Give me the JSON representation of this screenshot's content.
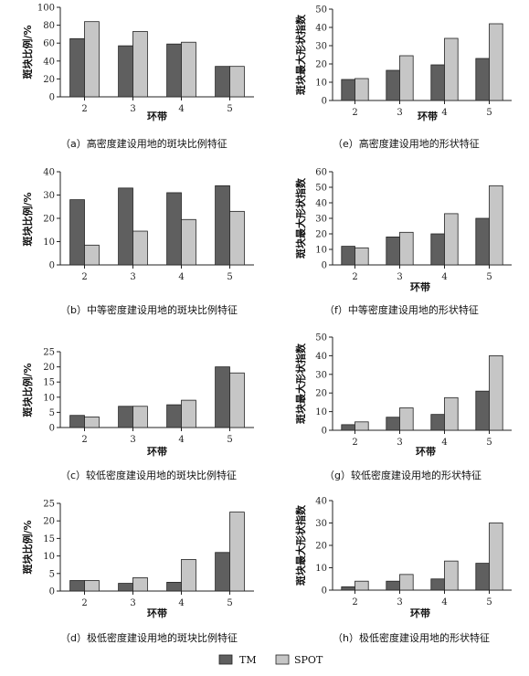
{
  "colors": {
    "tm": "#5f5f5f",
    "spot": "#c6c6c6",
    "outline": "#222222"
  },
  "legend": {
    "tm": "TM",
    "spot": "SPOT"
  },
  "chart_data": [
    {
      "type": "bar",
      "categories": [
        "2",
        "3",
        "4",
        "5"
      ],
      "series": [
        {
          "name": "TM",
          "values": [
            65,
            57,
            59,
            34
          ]
        },
        {
          "name": "SPOT",
          "values": [
            84,
            73,
            61,
            34
          ]
        }
      ],
      "xlabel": "环带",
      "ylabel": "斑块比例/%",
      "ylim": [
        0,
        100
      ],
      "yticks": [
        0,
        20,
        40,
        60,
        80,
        100
      ],
      "caption": "（a）高密度建设用地的斑块比例特征"
    },
    {
      "type": "bar",
      "categories": [
        "2",
        "3",
        "4",
        "5"
      ],
      "series": [
        {
          "name": "TM",
          "values": [
            28,
            33,
            31,
            34
          ]
        },
        {
          "name": "SPOT",
          "values": [
            8.5,
            14.5,
            19.5,
            23
          ]
        }
      ],
      "xlabel": "",
      "ylabel": "斑块比例/%",
      "ylim": [
        0,
        40
      ],
      "yticks": [
        0,
        10,
        20,
        30,
        40
      ],
      "caption": "（b）中等密度建设用地的斑块比例特征"
    },
    {
      "type": "bar",
      "categories": [
        "2",
        "3",
        "4",
        "5"
      ],
      "series": [
        {
          "name": "TM",
          "values": [
            4,
            7,
            7.5,
            20
          ]
        },
        {
          "name": "SPOT",
          "values": [
            3.5,
            7,
            9,
            18
          ]
        }
      ],
      "xlabel": "环带",
      "ylabel": "斑块比例/%",
      "ylim": [
        0,
        25
      ],
      "yticks": [
        0,
        5,
        10,
        15,
        20,
        25
      ],
      "caption": "（c）较低密度建设用地的斑块比例特征"
    },
    {
      "type": "bar",
      "categories": [
        "2",
        "3",
        "4",
        "5"
      ],
      "series": [
        {
          "name": "TM",
          "values": [
            3,
            2.2,
            2.5,
            11
          ]
        },
        {
          "name": "SPOT",
          "values": [
            3,
            3.8,
            9,
            22.5
          ]
        }
      ],
      "xlabel": "环带",
      "ylabel": "斑块比例/%",
      "ylim": [
        0,
        25
      ],
      "yticks": [
        0,
        5,
        10,
        15,
        20,
        25
      ],
      "caption": "（d）极低密度建设用地的斑块比例特征"
    },
    {
      "type": "bar",
      "categories": [
        "2",
        "3",
        "4",
        "5"
      ],
      "series": [
        {
          "name": "TM",
          "values": [
            11.5,
            16.5,
            19.5,
            23
          ]
        },
        {
          "name": "SPOT",
          "values": [
            12,
            24.5,
            34,
            42
          ]
        }
      ],
      "xlabel": "环带",
      "ylabel": "斑块最大形状指数",
      "ylim": [
        0,
        50
      ],
      "yticks": [
        0,
        10,
        20,
        30,
        40,
        50
      ],
      "caption": "（e）高密度建设用地的形状特征"
    },
    {
      "type": "bar",
      "categories": [
        "2",
        "3",
        "4",
        "5"
      ],
      "series": [
        {
          "name": "TM",
          "values": [
            12,
            18,
            20,
            30
          ]
        },
        {
          "name": "SPOT",
          "values": [
            11,
            21,
            33,
            51
          ]
        }
      ],
      "xlabel": "环带",
      "ylabel": "斑块最大形状指数",
      "ylim": [
        0,
        60
      ],
      "yticks": [
        0,
        10,
        20,
        30,
        40,
        50,
        60
      ],
      "caption": "（f）中等密度建设用地的形状特征"
    },
    {
      "type": "bar",
      "categories": [
        "2",
        "3",
        "4",
        "5"
      ],
      "series": [
        {
          "name": "TM",
          "values": [
            3,
            7,
            8.5,
            21
          ]
        },
        {
          "name": "SPOT",
          "values": [
            4.5,
            12,
            17.5,
            40
          ]
        }
      ],
      "xlabel": "环带",
      "ylabel": "斑块最大形状指数",
      "ylim": [
        0,
        50
      ],
      "yticks": [
        0,
        10,
        20,
        30,
        40,
        50
      ],
      "caption": "（g）较低密度建设用地的形状特征"
    },
    {
      "type": "bar",
      "categories": [
        "2",
        "3",
        "4",
        "5"
      ],
      "series": [
        {
          "name": "TM",
          "values": [
            1.5,
            4,
            5,
            12
          ]
        },
        {
          "name": "SPOT",
          "values": [
            4,
            7,
            13,
            30
          ]
        }
      ],
      "xlabel": "环带",
      "ylabel": "斑块最大形状指数",
      "ylim": [
        0,
        40
      ],
      "yticks": [
        0,
        10,
        20,
        30,
        40
      ],
      "caption": "（h）极低密度建设用地的形状特征"
    }
  ]
}
